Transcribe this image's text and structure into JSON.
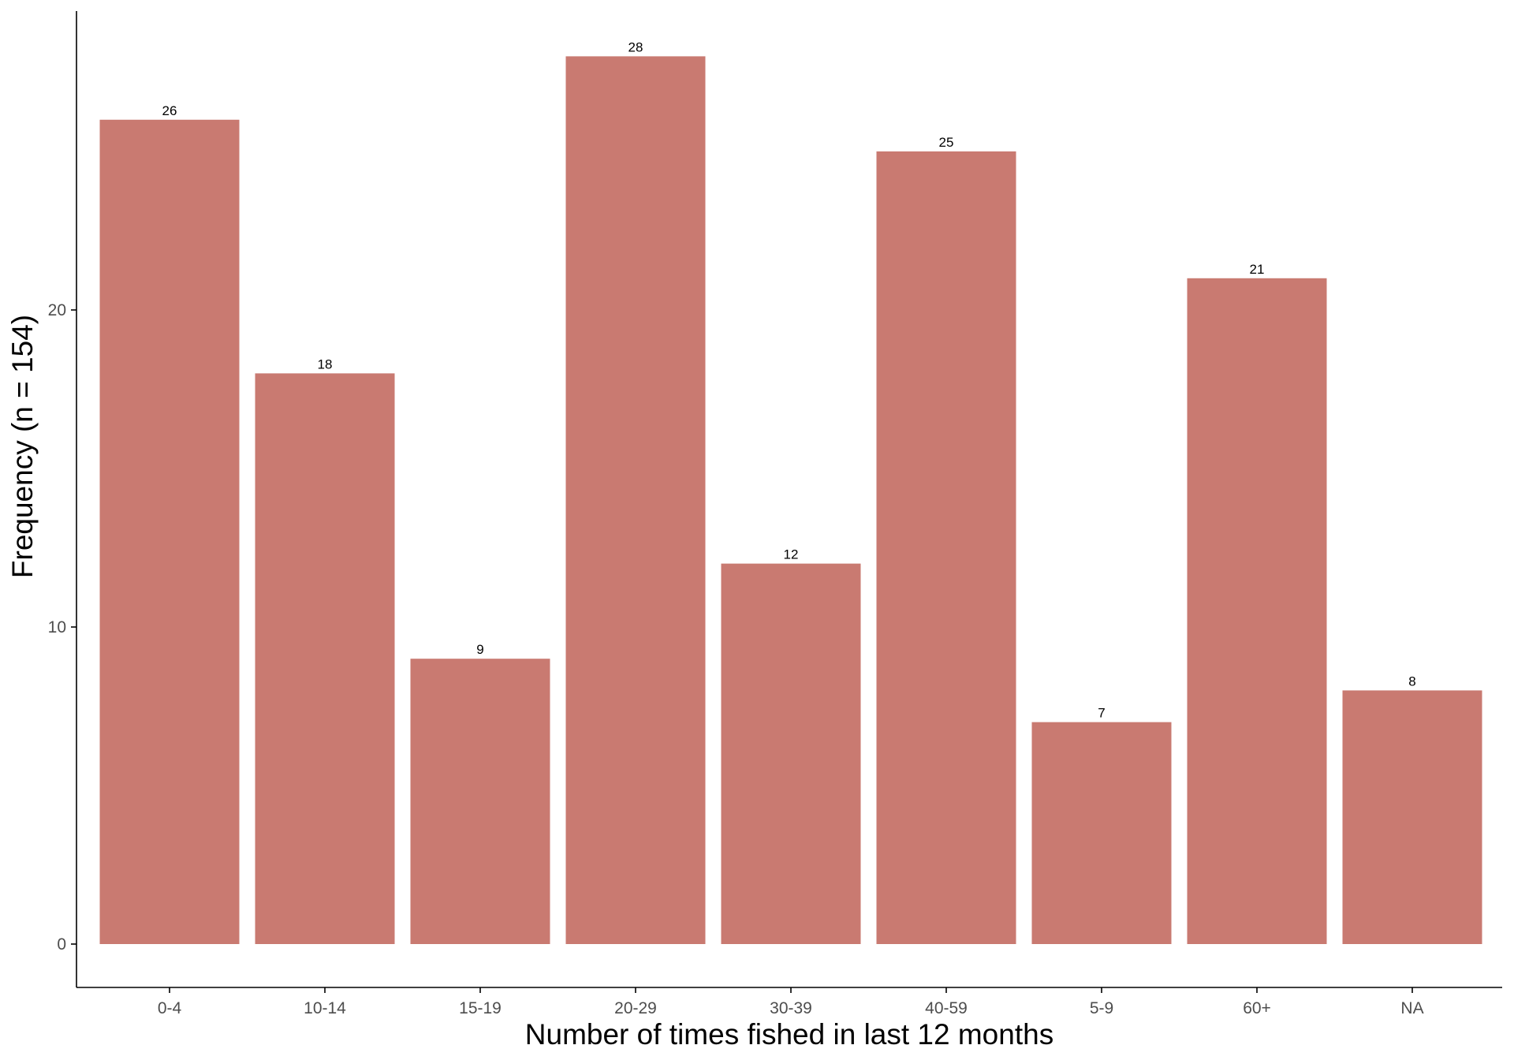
{
  "chart_data": {
    "type": "bar",
    "categories": [
      "0-4",
      "10-14",
      "15-19",
      "20-29",
      "30-39",
      "40-59",
      "5-9",
      "60+",
      "NA"
    ],
    "values": [
      26,
      18,
      9,
      28,
      12,
      25,
      7,
      21,
      8
    ],
    "data_labels": [
      "26",
      "18",
      "9",
      "28",
      "12",
      "25",
      "7",
      "21",
      "8"
    ],
    "xlabel": "Number of times fished in last 12 months",
    "ylabel": "Frequency (n = 154)",
    "yticks": [
      0,
      10,
      20
    ],
    "ytick_labels": [
      "0",
      "10",
      "20"
    ],
    "ylim": [
      -1.4,
      29.4
    ],
    "grid": false,
    "legend": "none",
    "bar_color": "#C97A71",
    "axis_color": "#000000",
    "tick_label_color": "#4D4D4D"
  }
}
